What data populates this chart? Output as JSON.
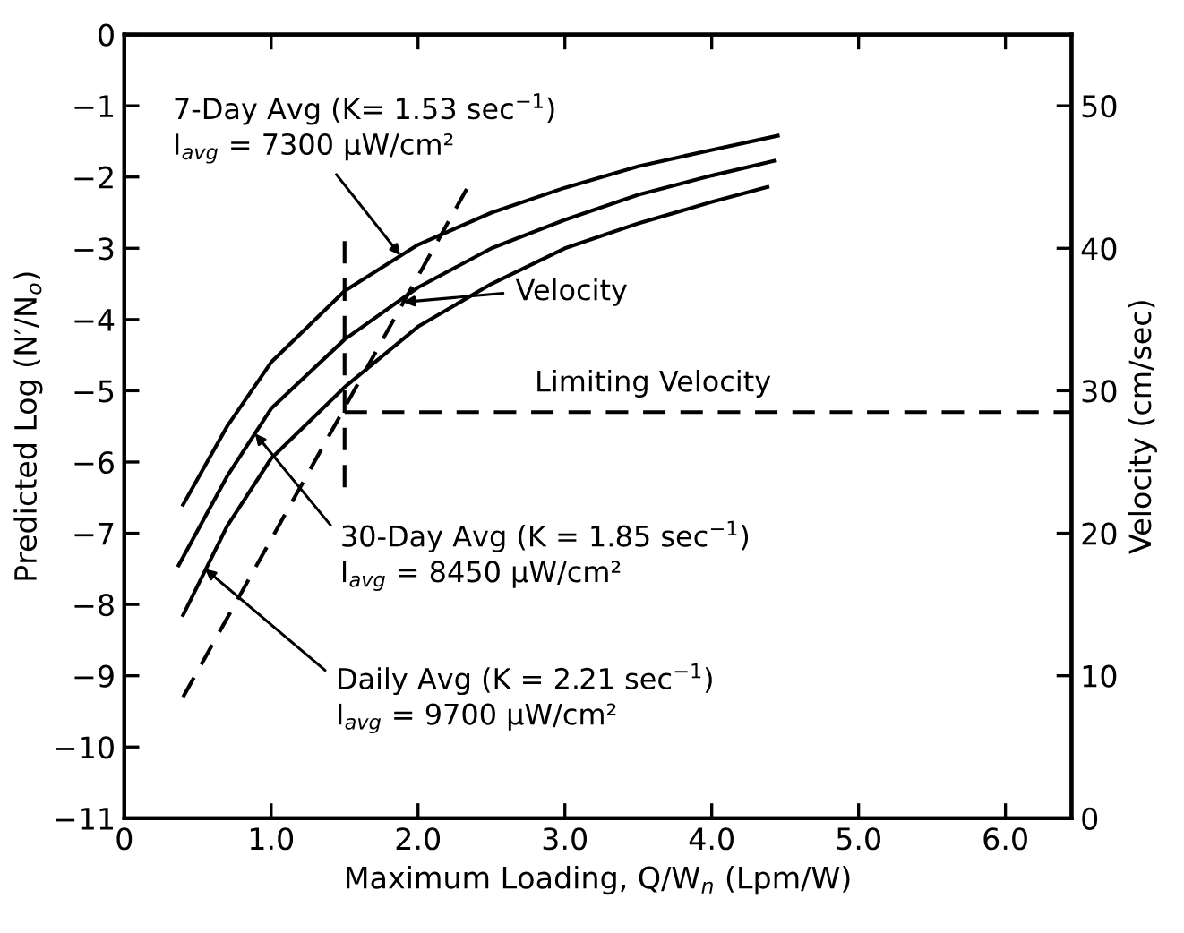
{
  "chart_data": {
    "type": "line",
    "xlabel": "Maximum Loading, Q/W$_{n}$ (Lpm/W)",
    "ylabel": "Predicted Log (N′/N$_{o}$)",
    "y2label": "Velocity (cm/sec)",
    "xlim": [
      0,
      6.45
    ],
    "xticks": [
      0,
      {
        "value": 1,
        "label": "1.0"
      },
      {
        "value": 2,
        "label": "2.0"
      },
      {
        "value": 3,
        "label": "3.0"
      },
      {
        "value": 4,
        "label": "4.0"
      },
      {
        "value": 5,
        "label": "5.0"
      },
      {
        "value": 6,
        "label": "6.0"
      }
    ],
    "ylim": [
      -11,
      0
    ],
    "yticks": [
      0,
      -1,
      -2,
      -3,
      -4,
      -5,
      -6,
      -7,
      -8,
      -9,
      -10,
      -11
    ],
    "y2lim": [
      0,
      55
    ],
    "y2ticks": [
      0,
      10,
      20,
      30,
      40,
      50
    ],
    "grid": false,
    "series": [
      {
        "color": "#000000",
        "line_style": "solid",
        "x": [
          0.4,
          0.7,
          1.0,
          1.5,
          2.0,
          2.5,
          3.0,
          3.5,
          4.0,
          4.45
        ],
        "values": [
          -6.6,
          -5.5,
          -4.6,
          -3.6,
          -2.95,
          -2.5,
          -2.15,
          -1.85,
          -1.62,
          -1.42
        ]
      },
      {
        "color": "#000000",
        "line_style": "solid",
        "x": [
          0.37,
          0.7,
          1.0,
          1.5,
          2.0,
          2.5,
          3.0,
          3.5,
          4.0,
          4.43
        ],
        "values": [
          -7.45,
          -6.2,
          -5.25,
          -4.28,
          -3.55,
          -3.0,
          -2.6,
          -2.25,
          -1.98,
          -1.77
        ]
      },
      {
        "color": "#000000",
        "line_style": "solid",
        "x": [
          0.4,
          0.7,
          1.0,
          1.5,
          2.0,
          2.5,
          3.0,
          3.5,
          4.0,
          4.38
        ],
        "values": [
          -8.15,
          -6.9,
          -5.95,
          -4.95,
          -4.1,
          -3.5,
          -3.0,
          -2.65,
          -2.35,
          -2.14
        ]
      },
      {
        "name": "Velocity",
        "color": "#000000",
        "line_style": "dashed",
        "axis": "y2",
        "x": [
          0.4,
          2.35
        ],
        "values": [
          8.5,
          44.5
        ]
      },
      {
        "color": "#000000",
        "line_style": "dashed",
        "axis": "y2",
        "x": [
          1.5,
          6.45
        ],
        "values": [
          28.5,
          28.5
        ]
      },
      {
        "color": "#000000",
        "line_style": "dashed",
        "x": [
          1.5,
          1.5
        ],
        "values": [
          -2.9,
          -6.4
        ]
      }
    ],
    "annotations": [
      "7-Day Avg (K= 1.53 sec$^{−1}$)",
      {
        "text": "I$_{avg}$ = 7300 μW/cm²",
        "x": 1.88,
        "y": -3.1
      },
      {
        "text": "Limiting Velocity",
        "x": 3.6,
        "y": -5.3
      },
      {
        "text": "30-Day Avg (K = 1.85 sec$^{−1}$)",
        "x": 0.89,
        "y": -5.6
      },
      "I$_{avg}$ = 8450 μW/cm²",
      {
        "text": "Daily Avg (K = 2.21 sec$^{−1}$)",
        "x": 0.55,
        "y": -7.5
      },
      "I$_{avg}$ = 9700 μW/cm²"
    ]
  }
}
